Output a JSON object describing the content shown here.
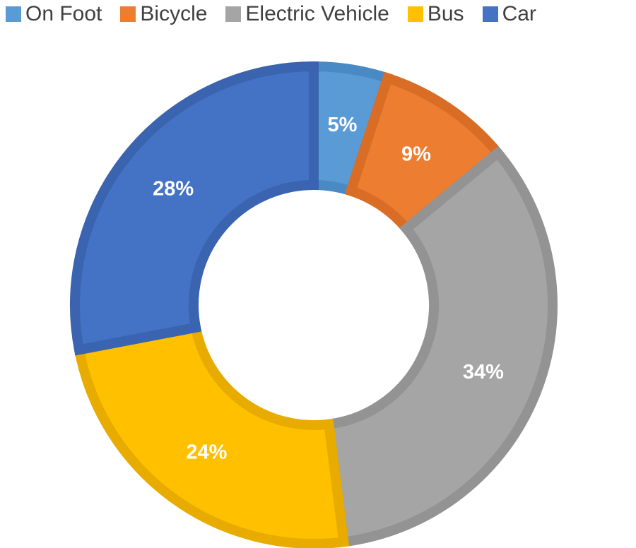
{
  "chart_data": {
    "type": "pie",
    "variant": "doughnut",
    "title": "",
    "legend_position": "top",
    "categories": [
      "On Foot",
      "Bicycle",
      "Electric Vehicle",
      "Bus",
      "Car"
    ],
    "values": [
      5,
      9,
      34,
      24,
      28
    ],
    "labels": [
      "5%",
      "9%",
      "34%",
      "24%",
      "28%"
    ],
    "colors": [
      "#5B9BD5",
      "#ED7D31",
      "#A5A5A5",
      "#FFC000",
      "#4472C4"
    ],
    "border_colors": [
      "#4A8AC4",
      "#D96D25",
      "#939393",
      "#E8AC00",
      "#3A63B0"
    ],
    "start_angle_deg": 0,
    "direction": "clockwise"
  }
}
